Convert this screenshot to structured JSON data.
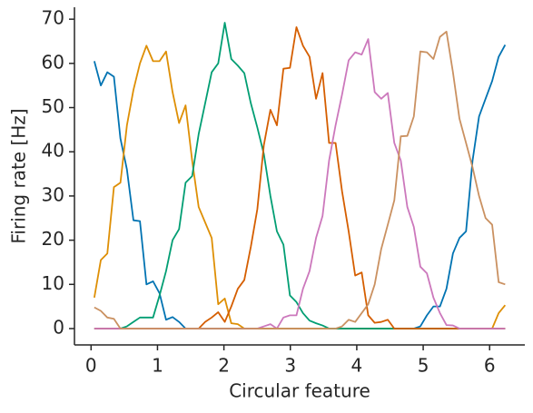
{
  "chart_data": {
    "type": "line",
    "xlabel": "Circular feature",
    "ylabel": "Firing rate [Hz]",
    "x": [
      0.049,
      0.147,
      0.245,
      0.344,
      0.442,
      0.54,
      0.638,
      0.736,
      0.834,
      0.933,
      1.031,
      1.129,
      1.227,
      1.325,
      1.423,
      1.522,
      1.62,
      1.718,
      1.816,
      1.914,
      2.013,
      2.111,
      2.209,
      2.307,
      2.405,
      2.503,
      2.601,
      2.7,
      2.798,
      2.896,
      2.994,
      3.092,
      3.19,
      3.289,
      3.387,
      3.485,
      3.583,
      3.681,
      3.779,
      3.878,
      3.976,
      4.074,
      4.172,
      4.27,
      4.368,
      4.467,
      4.565,
      4.663,
      4.761,
      4.859,
      4.957,
      5.056,
      5.154,
      5.252,
      5.35,
      5.448,
      5.546,
      5.645,
      5.743,
      5.841,
      5.939,
      6.038,
      6.136,
      6.234
    ],
    "series": [
      {
        "color": "#0173b2",
        "values": [
          60.5,
          55,
          58,
          57,
          43,
          36,
          24.5,
          24.3,
          10,
          10.7,
          8,
          2,
          2.6,
          1.5,
          0,
          0,
          0,
          0,
          0,
          0,
          0,
          0,
          0,
          0,
          0,
          0,
          0,
          0,
          0,
          0,
          0,
          0,
          0,
          0,
          0,
          0,
          0,
          0,
          0,
          0,
          0,
          0,
          0,
          0,
          0,
          0,
          0,
          0,
          0,
          0,
          0.5,
          3,
          5,
          5,
          9,
          17,
          20.5,
          22,
          38,
          48,
          52,
          56,
          61.5,
          64.2
        ]
      },
      {
        "color": "#de8f05",
        "values": [
          7,
          15.5,
          17,
          32,
          33,
          46,
          54,
          60,
          64,
          60.5,
          60.5,
          62.7,
          53.5,
          46.5,
          50.5,
          38,
          27.5,
          24,
          20.5,
          5.5,
          6.8,
          1.2,
          1,
          0,
          0,
          0,
          0,
          0,
          0,
          0,
          0,
          0,
          0,
          0,
          0,
          0,
          0,
          0,
          0,
          0,
          0,
          0,
          0,
          0,
          0,
          0,
          0,
          0,
          0,
          0,
          0,
          0,
          0,
          0,
          0,
          0,
          0,
          0,
          0,
          0,
          0,
          0,
          3.5,
          5.3
        ]
      },
      {
        "color": "#029e73",
        "values": [
          0,
          0,
          0,
          0,
          0,
          0.5,
          1.5,
          2.5,
          2.5,
          2.5,
          7.5,
          13,
          20,
          22.5,
          33,
          34.5,
          44,
          51,
          58,
          60,
          69.2,
          61,
          59.5,
          57.8,
          51,
          45.5,
          39.5,
          30,
          22,
          19,
          7.5,
          6,
          3.5,
          1.8,
          1.2,
          0.7,
          0,
          0,
          0,
          0,
          0,
          0,
          0,
          0,
          0,
          0,
          0,
          0,
          0,
          0,
          0,
          0,
          0,
          0,
          0,
          0,
          0,
          0,
          0,
          0,
          0,
          0,
          0,
          0
        ]
      },
      {
        "color": "#d55e00",
        "values": [
          0,
          0,
          0,
          0,
          0,
          0,
          0,
          0,
          0,
          0,
          0,
          0,
          0,
          0,
          0,
          0,
          0,
          1.5,
          2.5,
          3.7,
          1.5,
          5,
          9,
          11,
          18.5,
          27,
          41.5,
          49.5,
          46,
          58.8,
          59,
          68.2,
          64,
          61.5,
          52,
          57.8,
          42,
          42,
          31,
          22,
          12,
          12.7,
          3,
          1.3,
          1.5,
          2,
          0,
          0,
          0,
          0,
          0,
          0,
          0,
          0,
          0,
          0,
          0,
          0,
          0,
          0,
          0,
          0,
          0,
          0
        ]
      },
      {
        "color": "#cc78bc",
        "values": [
          0,
          0,
          0,
          0,
          0,
          0,
          0,
          0,
          0,
          0,
          0,
          0,
          0,
          0,
          0,
          0,
          0,
          0,
          0,
          0,
          0,
          0,
          0,
          0,
          0,
          0,
          0.5,
          1,
          0,
          2.5,
          3,
          3,
          9,
          13,
          20.5,
          25.5,
          38,
          46,
          53,
          60.7,
          62.5,
          62,
          65.5,
          53.5,
          52,
          53.3,
          42,
          38,
          27.5,
          23,
          14,
          12.5,
          7,
          3.5,
          0.8,
          0.7,
          0,
          0,
          0,
          0,
          0,
          0,
          0,
          0
        ]
      },
      {
        "color": "#ca9161",
        "values": [
          4.8,
          4,
          2.5,
          2.2,
          0,
          0,
          0,
          0,
          0,
          0,
          0,
          0,
          0,
          0,
          0,
          0,
          0,
          0,
          0,
          0,
          0,
          0,
          0,
          0,
          0,
          0,
          0,
          0,
          0,
          0,
          0,
          0,
          0,
          0,
          0,
          0,
          0,
          0,
          0.5,
          2,
          1.5,
          3.5,
          5.5,
          10,
          18,
          23.5,
          29,
          43.5,
          43.6,
          48,
          62.7,
          62.5,
          61,
          66,
          67.2,
          58,
          47.5,
          42,
          36.5,
          30,
          25,
          23.5,
          10.5,
          10
        ]
      }
    ],
    "xlim": [
      -0.25,
      6.53
    ],
    "ylim": [
      -3.7,
      72.7
    ],
    "xticks": [
      0,
      1,
      2,
      3,
      4,
      5,
      6
    ],
    "yticks": [
      0,
      10,
      20,
      30,
      40,
      50,
      60,
      70
    ]
  }
}
